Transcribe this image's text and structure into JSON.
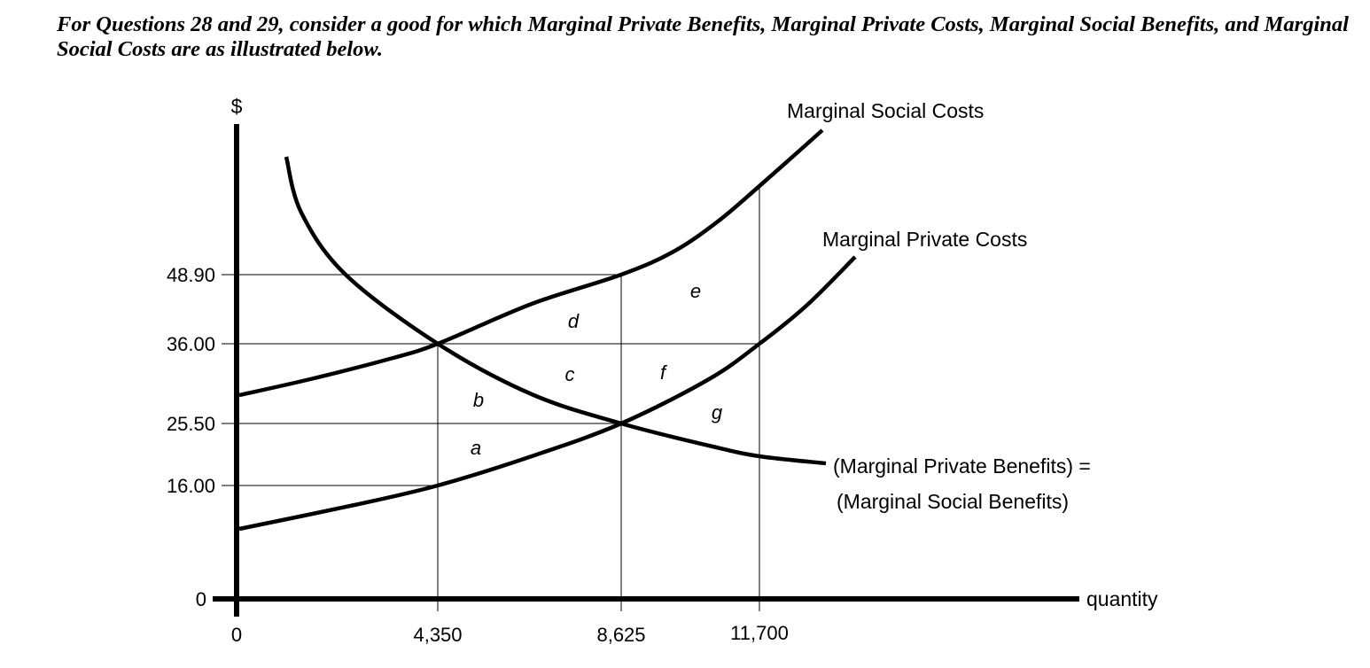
{
  "question": {
    "text": "For Questions 28 and 29, consider a good for which Marginal Private Benefits, Marginal Private Costs, Marginal Social Benefits, and Marginal Social Costs are as illustrated below."
  },
  "chart_data": {
    "type": "line",
    "title": "",
    "xlabel": "quantity",
    "ylabel": "$",
    "x_ticks": [
      "0",
      "4,350",
      "8,625",
      "11,700"
    ],
    "y_ticks": [
      "0",
      "16.00",
      "25.50",
      "36.00",
      "48.90"
    ],
    "series": [
      {
        "name": "Marginal Social Costs",
        "points": [
          [
            0,
            29
          ],
          [
            4350,
            36.0
          ],
          [
            8625,
            48.9
          ],
          [
            11700,
            62
          ]
        ]
      },
      {
        "name": "Marginal Private Costs",
        "points": [
          [
            0,
            9
          ],
          [
            4350,
            16.0
          ],
          [
            8625,
            25.5
          ],
          [
            11700,
            36.0
          ]
        ]
      },
      {
        "name": "(Marginal Private Benefits) = (Marginal Social Benefits)",
        "label_line1": "(Marginal Private Benefits) =",
        "label_line2": "(Marginal Social Benefits)",
        "points": [
          [
            4350,
            36.0
          ],
          [
            8625,
            25.5
          ],
          [
            11700,
            20
          ]
        ]
      }
    ],
    "region_labels": [
      "a",
      "b",
      "c",
      "d",
      "e",
      "f",
      "g"
    ],
    "grid": "reference lines at tick values"
  }
}
